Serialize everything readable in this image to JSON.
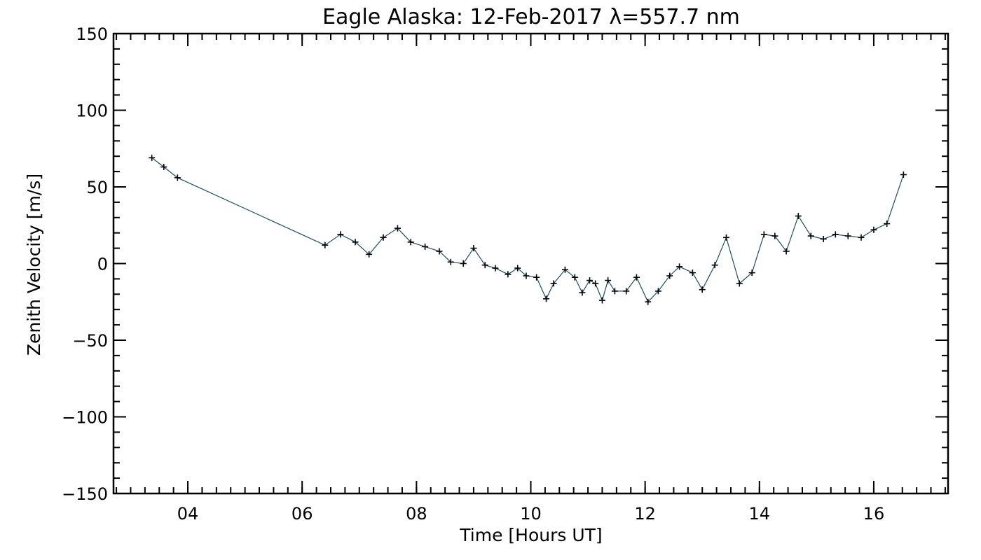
{
  "chart_data": {
    "type": "line",
    "title": "Eagle Alaska: 12-Feb-2017 λ=557.7 nm",
    "xlabel": "Time [Hours UT]",
    "ylabel": "Zenith Velocity [m/s]",
    "xlim": [
      2.7,
      17.3
    ],
    "ylim": [
      -150,
      150
    ],
    "x_ticks": [
      4,
      6,
      8,
      10,
      12,
      14,
      16
    ],
    "x_tick_labels": [
      "04",
      "06",
      "08",
      "10",
      "12",
      "14",
      "16"
    ],
    "x_minor_step": 0.25,
    "y_ticks": [
      -150,
      -100,
      -50,
      0,
      50,
      100,
      150
    ],
    "y_tick_labels": [
      "−150",
      "−100",
      "−50",
      "0",
      "50",
      "100",
      "150"
    ],
    "y_minor_step": 10,
    "grid": false,
    "line_color": "#1f4e5f",
    "marker": "plus",
    "series": [
      {
        "x": [
          3.37,
          3.58,
          3.82,
          6.4,
          6.67,
          6.93,
          7.17,
          7.42,
          7.67,
          7.9,
          8.15,
          8.4,
          8.6,
          8.82,
          9.0,
          9.2,
          9.38,
          9.6,
          9.77,
          9.92,
          10.1,
          10.27,
          10.4,
          10.6,
          10.77,
          10.9,
          11.03,
          11.13,
          11.25,
          11.35,
          11.47,
          11.67,
          11.85,
          12.05,
          12.23,
          12.43,
          12.6,
          12.83,
          13.0,
          13.22,
          13.42,
          13.65,
          13.87,
          14.08,
          14.27,
          14.47,
          14.68,
          14.9,
          15.12,
          15.33,
          15.55,
          15.78,
          16.0,
          16.23,
          16.52
        ],
        "values": [
          69,
          63,
          56,
          12,
          19,
          14,
          6,
          17,
          23,
          14,
          11,
          8,
          1,
          0,
          10,
          -1,
          -3,
          -7,
          -3,
          -8,
          -9,
          -23,
          -13,
          -4,
          -9,
          -19,
          -11,
          -13,
          -24,
          -11,
          -18,
          -18,
          -9,
          -25,
          -18,
          -8,
          -2,
          -6,
          -17,
          -1,
          17,
          -13,
          -6,
          19,
          18,
          8,
          31,
          18,
          16,
          19,
          18,
          17,
          22,
          26,
          58
        ]
      }
    ]
  }
}
